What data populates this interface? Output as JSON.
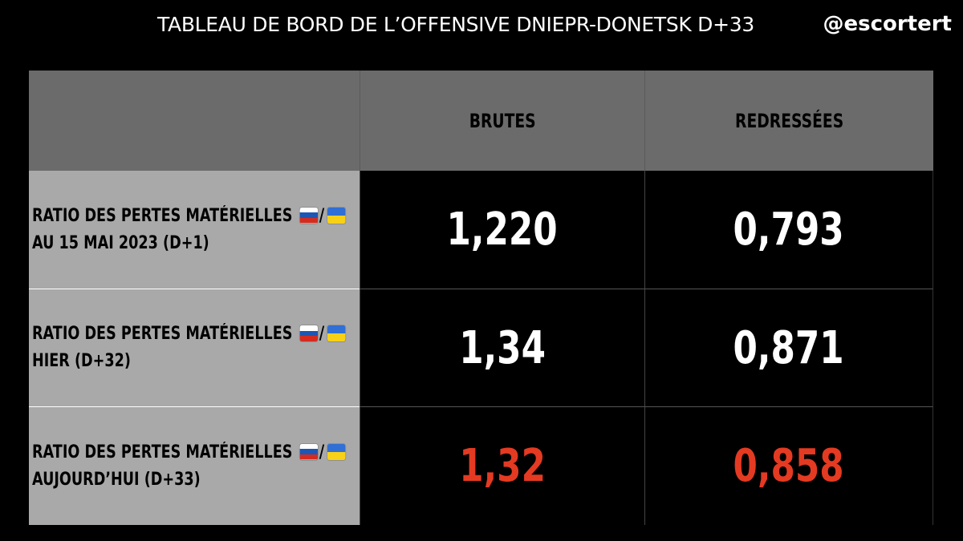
{
  "header": {
    "title": "TABLEAU DE BORD DE L’OFFENSIVE DNIEPR-DONETSK D+33",
    "handle": "@escortert"
  },
  "table": {
    "columns": [
      "",
      "BRUTES",
      "REDRESSÉES"
    ],
    "rows": [
      {
        "label_line1": "RATIO DES PERTES MATÉRIELLES",
        "separator": "/",
        "label_line2": "AU 15 MAI 2023 (D+1)",
        "brutes": "1,220",
        "redressees": "0,793",
        "highlight": false
      },
      {
        "label_line1": "RATIO DES PERTES MATÉRIELLES",
        "separator": "/",
        "label_line2": "HIER (D+32)",
        "brutes": "1,34",
        "redressees": "0,871",
        "highlight": false
      },
      {
        "label_line1": "RATIO DES PERTES MATÉRIELLES",
        "separator": "/",
        "label_line2": "AUJOURD’HUI (D+33)",
        "brutes": "1,32",
        "redressees": "0,858",
        "highlight": true
      }
    ]
  },
  "icons": {
    "flag_1": "russia-flag-icon",
    "flag_2": "ukraine-flag-icon"
  },
  "colors": {
    "background": "#000000",
    "header_row": "#6b6b6b",
    "label_column": "#a9a9a9",
    "value_text": "#ffffff",
    "highlight_text": "#e43a22"
  }
}
